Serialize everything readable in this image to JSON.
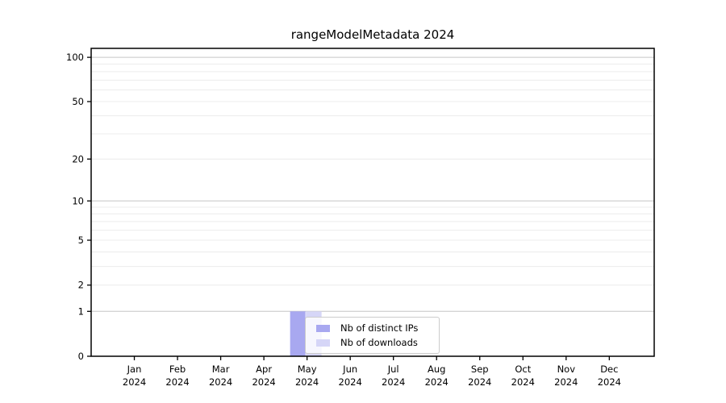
{
  "chart_data": {
    "type": "bar",
    "title": "rangeModelMetadata 2024",
    "months": [
      "Jan",
      "Feb",
      "Mar",
      "Apr",
      "May",
      "Jun",
      "Jul",
      "Aug",
      "Sep",
      "Oct",
      "Nov",
      "Dec"
    ],
    "year": "2024",
    "series": [
      {
        "name": "Nb of distinct IPs",
        "color": "#a8a8f0",
        "values": [
          0,
          0,
          0,
          0,
          1,
          0,
          0,
          0,
          0,
          0,
          0,
          0
        ]
      },
      {
        "name": "Nb of downloads",
        "color": "#d6d6f7",
        "values": [
          0,
          0,
          0,
          0,
          1,
          0,
          0,
          0,
          0,
          0,
          0,
          0
        ]
      }
    ],
    "yscale": "log1p",
    "ylim": [
      0,
      115
    ],
    "y_tick_values": [
      0,
      1,
      2,
      5,
      10,
      20,
      50,
      100
    ],
    "y_major_grid": [
      1,
      10,
      100
    ],
    "y_minor_grid": [
      2,
      3,
      4,
      5,
      6,
      7,
      8,
      9,
      20,
      30,
      40,
      50,
      60,
      70,
      80,
      90
    ],
    "legend_position": "lower center",
    "grid": true,
    "colors": {
      "grid_major": "#c6c6c6",
      "grid_minor": "#ececec",
      "axis": "#000000",
      "text": "#000000",
      "background": "#ffffff"
    }
  }
}
